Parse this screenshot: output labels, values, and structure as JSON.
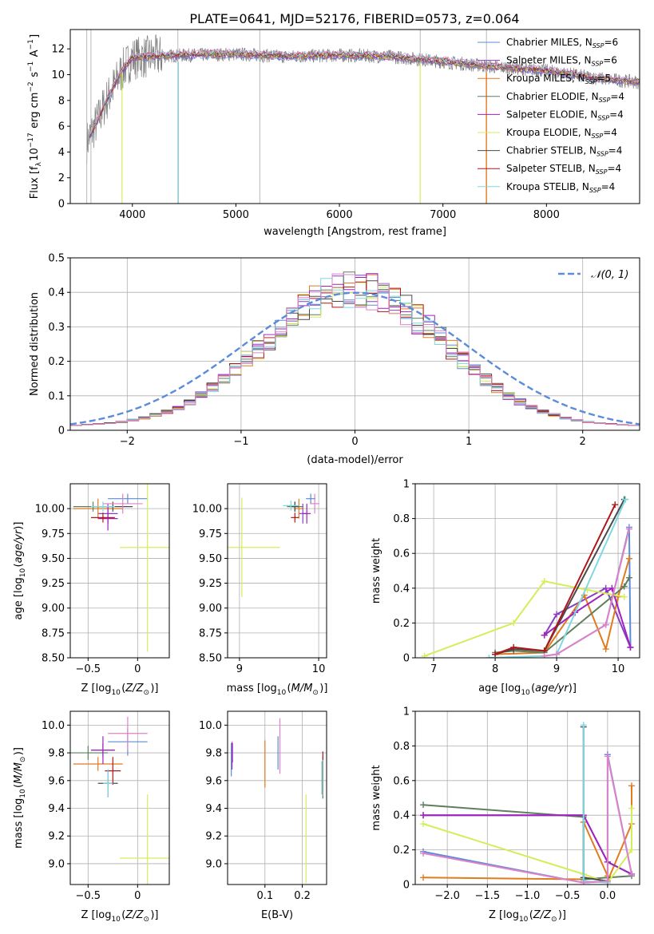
{
  "figure": {
    "title": "PLATE=0641, MJD=52176, FIBERID=0573, z=0.064",
    "palette": [
      "#5B8BD9",
      "#8A3FC0",
      "#E07B20",
      "#5E7E5E",
      "#A020C0",
      "#D4EE5A",
      "#4A4A4A",
      "#B01818",
      "#7FD8E0",
      "#DE82C8",
      "#808080"
    ]
  },
  "chart_data": [
    {
      "id": "spectrum",
      "type": "line",
      "xlabel": "wavelength [Angstrom, rest frame]",
      "ylabel": "Flux [f",
      "ylabel_sub": "λ",
      "ylabel_rest": "10",
      "ylabel_exp": "−17",
      "ylabel_tail": " erg cm",
      "xlim": [
        3400,
        8900
      ],
      "ylim": [
        0,
        13.5
      ],
      "xticks": [
        4000,
        5000,
        6000,
        7000,
        8000
      ],
      "yticks": [
        0,
        2,
        4,
        6,
        8,
        10,
        12
      ],
      "observed_profile": {
        "wavelength": [
          3550,
          3650,
          3750,
          3900,
          4000,
          4200,
          4500,
          5000,
          5500,
          6000,
          6500,
          7000,
          7500,
          8000,
          8500,
          8900
        ],
        "flux": [
          4.6,
          6.2,
          8.0,
          10.3,
          11.3,
          11.4,
          11.5,
          11.6,
          11.4,
          11.5,
          11.4,
          11.0,
          10.6,
          10.3,
          9.7,
          9.4
        ]
      },
      "legend": [
        {
          "label": "Chabrier MILES, N",
          "sub": "SSP",
          "tail": "=6",
          "color": "#5B8BD9"
        },
        {
          "label": "Salpeter MILES, N",
          "sub": "SSP",
          "tail": "=6",
          "color": "#8A3FC0"
        },
        {
          "label": "Kroupa MILES, N",
          "sub": "SSP",
          "tail": "=5",
          "color": "#E07B20"
        },
        {
          "label": "Chabrier ELODIE, N",
          "sub": "SSP",
          "tail": "=4",
          "color": "#5E7E5E"
        },
        {
          "label": "Salpeter ELODIE, N",
          "sub": "SSP",
          "tail": "=4",
          "color": "#A020C0"
        },
        {
          "label": "Kroupa ELODIE, N",
          "sub": "SSP",
          "tail": "=4",
          "color": "#D4EE5A"
        },
        {
          "label": "Chabrier STELIB, N",
          "sub": "SSP",
          "tail": "=4",
          "color": "#4A4A4A"
        },
        {
          "label": "Salpeter STELIB, N",
          "sub": "SSP",
          "tail": "=4",
          "color": "#B01818"
        },
        {
          "label": "Kroupa STELIB, N",
          "sub": "SSP",
          "tail": "=4",
          "color": "#7FD8E0"
        }
      ]
    },
    {
      "id": "residuals",
      "type": "bar",
      "xlabel": "(data-model)/error",
      "ylabel": "Normed distribution",
      "xlim": [
        -2.5,
        2.5
      ],
      "ylim": [
        0,
        0.5
      ],
      "xticks": [
        -2,
        -1,
        0,
        1,
        2
      ],
      "yticks": [
        0.0,
        0.1,
        0.2,
        0.3,
        0.4,
        0.5
      ],
      "bin_width": 0.1,
      "legend": "𝒩(0, 1)",
      "gaussian": {
        "mean": 0,
        "sigma": 1
      }
    },
    {
      "id": "age_vs_Z",
      "type": "scatter",
      "xlabel": "Z [log",
      "xlabel_sub": "10",
      "xlabel_tail": "(Z/Z",
      "xlabel_end": "⊙)]",
      "ylabel": "age  [log",
      "ylabel_sub": "10",
      "ylabel_tail": "(age/yr)]",
      "xlim": [
        -0.68,
        0.32
      ],
      "ylim": [
        8.5,
        10.25
      ],
      "xticks": [
        -0.5,
        0.0
      ],
      "ytick_labels": [
        "8.50",
        "8.75",
        "9.00",
        "9.25",
        "9.50",
        "9.75",
        "10.00"
      ],
      "yticks": [
        8.5,
        8.75,
        9.0,
        9.25,
        9.5,
        9.75,
        10.0
      ],
      "points": [
        {
          "x": -0.1,
          "y": 10.1,
          "xe": 0.2,
          "ye": 0.05,
          "color": "#5B8BD9"
        },
        {
          "x": -0.3,
          "y": 9.95,
          "xe": 0.1,
          "ye": 0.1,
          "color": "#8A3FC0"
        },
        {
          "x": -0.4,
          "y": 10.0,
          "xe": 0.25,
          "ye": 0.1,
          "color": "#E07B20"
        },
        {
          "x": -0.45,
          "y": 10.02,
          "xe": 0.2,
          "ye": 0.05,
          "color": "#5E7E5E"
        },
        {
          "x": -0.3,
          "y": 9.9,
          "xe": 0.1,
          "ye": 0.12,
          "color": "#A020C0"
        },
        {
          "x": 0.1,
          "y": 9.61,
          "xe": 0.28,
          "ye": 1.05,
          "color": "#D4EE5A"
        },
        {
          "x": -0.25,
          "y": 10.02,
          "xe": 0.2,
          "ye": 0.05,
          "color": "#4A4A4A"
        },
        {
          "x": -0.35,
          "y": 9.91,
          "xe": 0.12,
          "ye": 0.05,
          "color": "#B01818"
        },
        {
          "x": -0.35,
          "y": 10.02,
          "xe": 0.12,
          "ye": 0.05,
          "color": "#7FD8E0"
        },
        {
          "x": -0.15,
          "y": 10.05,
          "xe": 0.2,
          "ye": 0.1,
          "color": "#DE82C8"
        }
      ]
    },
    {
      "id": "age_vs_mass",
      "type": "scatter",
      "xlabel": "mass [log",
      "xlabel_sub": "10",
      "xlabel_tail": "(M/M",
      "xlabel_end": "⊙)]",
      "xlim": [
        8.85,
        10.1
      ],
      "ylim": [
        8.5,
        10.25
      ],
      "xticks": [
        9,
        10
      ],
      "ytick_labels": [
        "8.50",
        "8.75",
        "9.00",
        "9.25",
        "9.50",
        "9.75",
        "10.00"
      ],
      "yticks": [
        8.5,
        8.75,
        9.0,
        9.25,
        9.5,
        9.75,
        10.0
      ],
      "points": [
        {
          "x": 9.9,
          "y": 10.1,
          "xe": 0.06,
          "ye": 0.05,
          "color": "#5B8BD9"
        },
        {
          "x": 9.8,
          "y": 9.95,
          "xe": 0.05,
          "ye": 0.1,
          "color": "#8A3FC0"
        },
        {
          "x": 9.75,
          "y": 10.0,
          "xe": 0.05,
          "ye": 0.1,
          "color": "#E07B20"
        },
        {
          "x": 9.7,
          "y": 10.02,
          "xe": 0.1,
          "ye": 0.05,
          "color": "#5E7E5E"
        },
        {
          "x": 9.85,
          "y": 9.95,
          "xe": 0.05,
          "ye": 0.1,
          "color": "#A020C0"
        },
        {
          "x": 9.03,
          "y": 9.61,
          "xe": 0.48,
          "ye": 0.5,
          "color": "#D4EE5A"
        },
        {
          "x": 9.7,
          "y": 10.02,
          "xe": 0.05,
          "ye": 0.05,
          "color": "#4A4A4A"
        },
        {
          "x": 9.7,
          "y": 9.91,
          "xe": 0.05,
          "ye": 0.05,
          "color": "#B01818"
        },
        {
          "x": 9.65,
          "y": 10.03,
          "xe": 0.1,
          "ye": 0.05,
          "color": "#7FD8E0"
        },
        {
          "x": 9.95,
          "y": 10.05,
          "xe": 0.06,
          "ye": 0.1,
          "color": "#DE82C8"
        }
      ]
    },
    {
      "id": "weight_vs_age",
      "type": "line",
      "xlabel": "age  [log",
      "xlabel_sub": "10",
      "xlabel_tail": "(age/yr)]",
      "ylabel": "mass weight",
      "xlim": [
        6.7,
        10.35
      ],
      "ylim": [
        0,
        1.0
      ],
      "xticks": [
        7,
        8,
        9,
        10
      ],
      "yticks": [
        0.0,
        0.2,
        0.4,
        0.6,
        0.8,
        1.0
      ],
      "series": [
        {
          "color": "#5B8BD9",
          "x": [
            8.8,
            9.0,
            9.8,
            10.18,
            10.2
          ],
          "y": [
            0.01,
            0.02,
            0.19,
            0.75,
            0.06
          ]
        },
        {
          "color": "#8A3FC0",
          "x": [
            8.8,
            9.0,
            9.8,
            10.2
          ],
          "y": [
            0.13,
            0.25,
            0.4,
            0.06
          ]
        },
        {
          "color": "#E07B20",
          "x": [
            8.0,
            8.8,
            9.45,
            9.8,
            10.0,
            10.18
          ],
          "y": [
            0.02,
            0.03,
            0.36,
            0.05,
            0.35,
            0.57
          ]
        },
        {
          "color": "#5E7E5E",
          "x": [
            8.0,
            8.3,
            8.8,
            10.1,
            10.18
          ],
          "y": [
            0.03,
            0.04,
            0.03,
            0.41,
            0.46
          ]
        },
        {
          "color": "#A020C0",
          "x": [
            8.8,
            9.3,
            9.9,
            10.2
          ],
          "y": [
            0.13,
            0.26,
            0.4,
            0.06
          ]
        },
        {
          "color": "#D4EE5A",
          "x": [
            6.85,
            8.3,
            8.8,
            9.5,
            10.1
          ],
          "y": [
            0.01,
            0.2,
            0.44,
            0.39,
            0.35
          ]
        },
        {
          "color": "#4A4A4A",
          "x": [
            8.0,
            8.3,
            8.8,
            10.1
          ],
          "y": [
            0.02,
            0.05,
            0.04,
            0.91
          ]
        },
        {
          "color": "#B01818",
          "x": [
            8.0,
            8.3,
            8.8,
            9.95
          ],
          "y": [
            0.02,
            0.06,
            0.04,
            0.88
          ]
        },
        {
          "color": "#7FD8E0",
          "x": [
            7.9,
            8.8,
            9.0,
            10.12
          ],
          "y": [
            0.0,
            0.01,
            0.02,
            0.91
          ]
        },
        {
          "color": "#DE82C8",
          "x": [
            8.8,
            9.0,
            9.8,
            10.18
          ],
          "y": [
            0.01,
            0.02,
            0.19,
            0.74
          ]
        }
      ]
    },
    {
      "id": "mass_vs_Z",
      "type": "scatter",
      "xlabel": "Z [log",
      "xlabel_sub": "10",
      "xlabel_tail": "(Z/Z",
      "xlabel_end": "⊙)]",
      "ylabel": "mass [log",
      "ylabel_sub": "10",
      "ylabel_tail": "(M/M",
      "ylabel_end": "⊙)]",
      "xlim": [
        -0.68,
        0.32
      ],
      "ylim": [
        8.85,
        10.1
      ],
      "xticks": [
        -0.5,
        0.0
      ],
      "ytick_labels": [
        "9.0",
        "9.2",
        "9.4",
        "9.6",
        "9.8",
        "10.0"
      ],
      "yticks": [
        9.0,
        9.2,
        9.4,
        9.6,
        9.8,
        10.0
      ],
      "points": [
        {
          "x": -0.1,
          "y": 9.88,
          "xe": 0.2,
          "ye": 0.1,
          "color": "#5B8BD9"
        },
        {
          "x": -0.35,
          "y": 9.82,
          "xe": 0.12,
          "ye": 0.05,
          "color": "#8A3FC0"
        },
        {
          "x": -0.4,
          "y": 9.72,
          "xe": 0.25,
          "ye": 0.05,
          "color": "#E07B20"
        },
        {
          "x": -0.5,
          "y": 9.8,
          "xe": 0.2,
          "ye": 0.05,
          "color": "#5E7E5E"
        },
        {
          "x": -0.35,
          "y": 9.82,
          "xe": 0.12,
          "ye": 0.1,
          "color": "#A020C0"
        },
        {
          "x": 0.1,
          "y": 9.04,
          "xe": 0.28,
          "ye": 0.46,
          "color": "#D4EE5A"
        },
        {
          "x": -0.3,
          "y": 9.58,
          "xe": 0.1,
          "ye": 0.1,
          "color": "#4A4A4A"
        },
        {
          "x": -0.25,
          "y": 9.67,
          "xe": 0.08,
          "ye": 0.1,
          "color": "#B01818"
        },
        {
          "x": -0.3,
          "y": 9.58,
          "xe": 0.05,
          "ye": 0.1,
          "color": "#7FD8E0"
        },
        {
          "x": -0.1,
          "y": 9.94,
          "xe": 0.2,
          "ye": 0.12,
          "color": "#DE82C8"
        }
      ]
    },
    {
      "id": "mass_vs_EBV",
      "type": "scatter",
      "xlabel": "E(B-V)",
      "xlim": [
        0.0,
        0.265
      ],
      "ylim": [
        8.85,
        10.1
      ],
      "xticks": [
        0.1,
        0.2
      ],
      "ytick_labels": [
        "9.0",
        "9.2",
        "9.4",
        "9.6",
        "9.8",
        "10.0"
      ],
      "yticks": [
        9.0,
        9.2,
        9.4,
        9.6,
        9.8,
        10.0
      ],
      "points": [
        {
          "x": 0.01,
          "y": 9.75,
          "ye": 0.12,
          "color": "#5B8BD9"
        },
        {
          "x": 0.012,
          "y": 9.78,
          "ye": 0.1,
          "color": "#8A3FC0"
        },
        {
          "x": 0.1,
          "y": 9.72,
          "ye": 0.17,
          "color": "#E07B20"
        },
        {
          "x": 0.255,
          "y": 9.62,
          "ye": 0.15,
          "color": "#5E7E5E"
        },
        {
          "x": 0.013,
          "y": 9.8,
          "ye": 0.07,
          "color": "#A020C0"
        },
        {
          "x": 0.21,
          "y": 9.18,
          "ye": 0.32,
          "color": "#D4EE5A"
        },
        {
          "x": 0.253,
          "y": 9.62,
          "ye": 0.12,
          "color": "#4A4A4A"
        },
        {
          "x": 0.255,
          "y": 9.78,
          "ye": 0.03,
          "color": "#B01818"
        },
        {
          "x": 0.254,
          "y": 9.62,
          "ye": 0.13,
          "color": "#7FD8E0"
        },
        {
          "x": 0.14,
          "y": 9.85,
          "ye": 0.2,
          "color": "#DE82C8"
        },
        {
          "x": 0.135,
          "y": 9.8,
          "ye": 0.12,
          "color": "#5B8BD9"
        }
      ]
    },
    {
      "id": "weight_vs_Z",
      "type": "line",
      "xlabel": "Z [log",
      "xlabel_sub": "10",
      "xlabel_tail": "(Z/Z",
      "xlabel_end": "⊙)]",
      "ylabel": "mass weight",
      "xlim": [
        -2.4,
        0.4
      ],
      "ylim": [
        0,
        1.0
      ],
      "xticks": [
        -2.0,
        -1.5,
        -1.0,
        -0.5,
        0.0
      ],
      "xtick_labels": [
        "−2.0",
        "−1.5",
        "−1.0",
        "−0.5",
        "0.0"
      ],
      "yticks": [
        0.0,
        0.2,
        0.4,
        0.6,
        0.8,
        1.0
      ],
      "series": [
        {
          "color": "#5B8BD9",
          "x": [
            -2.3,
            -0.3,
            0.0,
            0.0,
            0.3
          ],
          "y": [
            0.19,
            0.01,
            0.02,
            0.75,
            0.06
          ]
        },
        {
          "color": "#8A3FC0",
          "x": [
            -2.3,
            -0.3,
            0.0,
            0.3
          ],
          "y": [
            0.4,
            0.4,
            0.13,
            0.06
          ]
        },
        {
          "color": "#E07B20",
          "x": [
            -2.3,
            -0.3,
            -0.3,
            0.0,
            0.0,
            0.3,
            0.3
          ],
          "y": [
            0.04,
            0.03,
            0.36,
            0.05,
            0.02,
            0.35,
            0.57
          ]
        },
        {
          "color": "#5E7E5E",
          "x": [
            -2.3,
            -0.3,
            -0.3,
            0.0,
            0.3
          ],
          "y": [
            0.46,
            0.39,
            0.03,
            0.04,
            0.05
          ]
        },
        {
          "color": "#A020C0",
          "x": [
            -2.3,
            -0.3,
            0.0,
            0.3
          ],
          "y": [
            0.4,
            0.4,
            0.13,
            0.06
          ]
        },
        {
          "color": "#D4EE5A",
          "x": [
            -2.3,
            -0.3,
            0.0,
            0.3,
            0.3
          ],
          "y": [
            0.35,
            0.06,
            0.01,
            0.2,
            0.44
          ]
        },
        {
          "color": "#4A4A4A",
          "x": [
            -0.3,
            -0.3,
            0.0
          ],
          "y": [
            0.91,
            0.04,
            0.02
          ]
        },
        {
          "color": "#7FD8E0",
          "x": [
            -0.3,
            -0.3,
            0.0
          ],
          "y": [
            0.92,
            0.02,
            0.01
          ]
        },
        {
          "color": "#DE82C8",
          "x": [
            -2.3,
            -0.3,
            0.0,
            0.0,
            0.3
          ],
          "y": [
            0.18,
            0.01,
            0.02,
            0.74,
            0.06
          ]
        }
      ]
    }
  ]
}
